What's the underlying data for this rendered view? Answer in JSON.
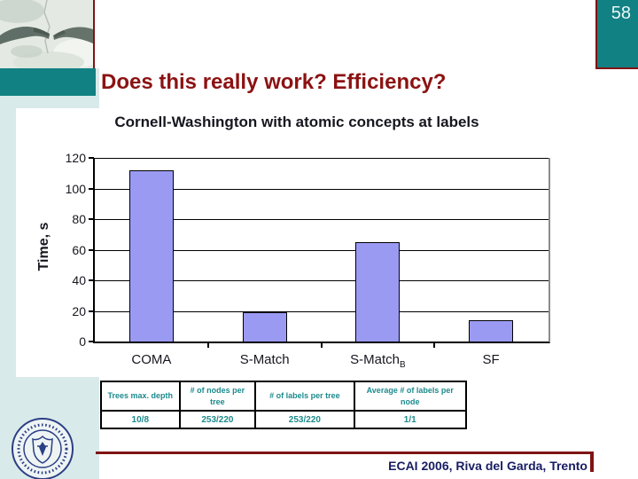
{
  "slide": {
    "page_number": "58",
    "title": "Does this really work? Efficiency?",
    "footer_text": "ECAI 2006, Riva del Garda, Trento"
  },
  "chart_data": {
    "type": "bar",
    "title": "Cornell-Washington with atomic concepts at labels",
    "ylabel": "Time, s",
    "xlabel": "",
    "categories": [
      {
        "label": "COMA",
        "sub": ""
      },
      {
        "label": "S-Match",
        "sub": ""
      },
      {
        "label": "S-Match",
        "sub": "B"
      },
      {
        "label": "SF",
        "sub": ""
      }
    ],
    "values": [
      112,
      19,
      65,
      14
    ],
    "ylim": [
      0,
      120
    ],
    "yticks": [
      0,
      20,
      40,
      60,
      80,
      100,
      120
    ],
    "grid": true,
    "legend": null,
    "bar_color": "#9b9af3",
    "bar_border_color": "#000000"
  },
  "stats_table": {
    "headers": [
      "Trees max. depth",
      "# of nodes per tree",
      "# of labels per tree",
      "Average # of labels per node"
    ],
    "rows": [
      [
        "10/8",
        "253/220",
        "253/220",
        "1/1"
      ]
    ]
  },
  "icons": {
    "top_left_image": "creation-of-adam-hands-image",
    "bottom_left_logo": "university-of-trento-seal"
  },
  "colors": {
    "teal": "#128183",
    "light_cyan": "#d9eaea",
    "dark_red": "#7f1414",
    "title_red": "#8c1212",
    "footer_navy": "#181d63",
    "table_teal_text": "#1d8a8c",
    "chart_text": "#16161f",
    "bar_fill": "#9b9af3",
    "plot_shadow_gray": "#8c8c8c"
  }
}
